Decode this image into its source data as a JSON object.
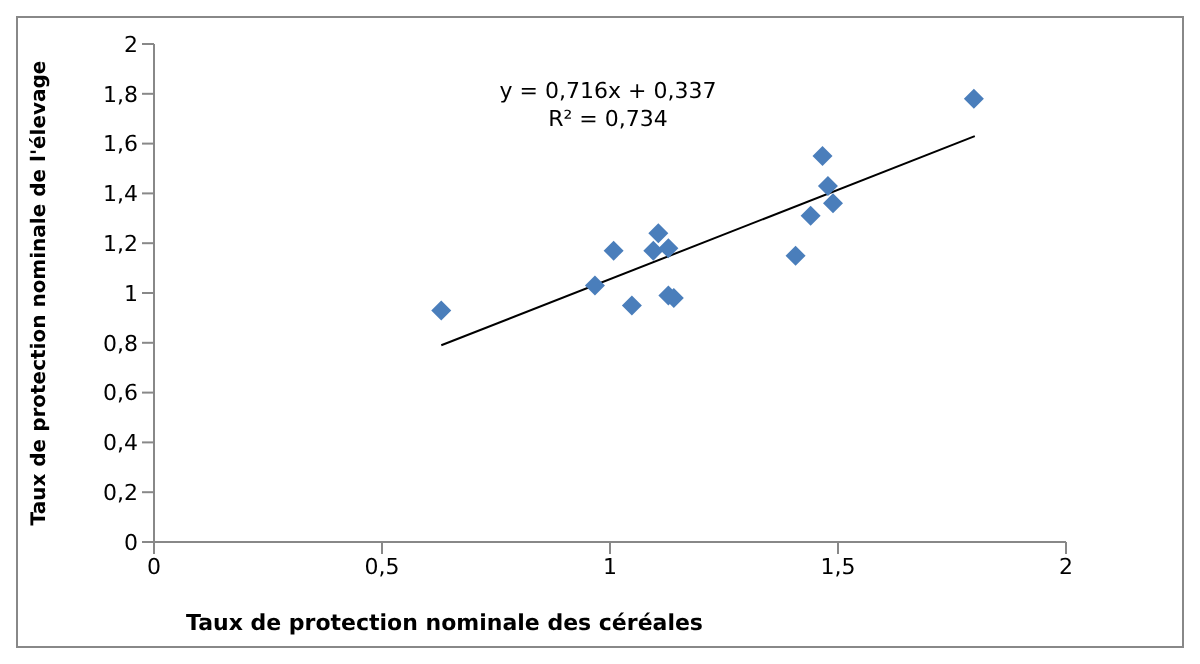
{
  "chart_data": {
    "type": "scatter",
    "xlabel": "Taux de protection nominale des céréales",
    "ylabel": "Taux de protection nominale  de l'élevage",
    "annotations": [
      "y = 0,716x + 0,337",
      "R² = 0,734"
    ],
    "series": [
      {
        "marker": "diamond",
        "color": "#4a7ebb",
        "x": [
          0.63,
          0.967,
          1.008,
          1.048,
          1.106,
          1.095,
          1.128,
          1.128,
          1.14,
          1.407,
          1.44,
          1.466,
          1.478,
          1.489,
          1.798
        ],
        "values": [
          0.93,
          1.03,
          1.17,
          0.95,
          1.24,
          1.17,
          1.18,
          0.99,
          0.98,
          1.15,
          1.31,
          1.55,
          1.43,
          1.36,
          1.78
        ]
      },
      {
        "type": "line",
        "marker": "none",
        "color": "#000000",
        "x": [
          0.63,
          1.8
        ],
        "values": [
          0.79,
          1.63
        ]
      }
    ],
    "xlim": [
      0,
      2
    ],
    "xticks": [
      0,
      {
        "value": 0.5,
        "label": "0,5"
      },
      1,
      {
        "value": 1.5,
        "label": "1,5"
      },
      2
    ],
    "ylim": [
      0,
      2
    ],
    "yticks": [
      0,
      {
        "value": 0.2,
        "label": "0,2"
      },
      {
        "value": 0.4,
        "label": "0,4"
      },
      {
        "value": 0.6,
        "label": "0,6"
      },
      {
        "value": 0.8,
        "label": "0,8"
      },
      1,
      {
        "value": 1.2,
        "label": "1,2"
      },
      {
        "value": 1.4,
        "label": "1,4"
      },
      {
        "value": 1.6,
        "label": "1,6"
      },
      {
        "value": 1.8,
        "label": "1,8"
      },
      2
    ],
    "grid": false,
    "legend": false,
    "line_style": "solid"
  }
}
